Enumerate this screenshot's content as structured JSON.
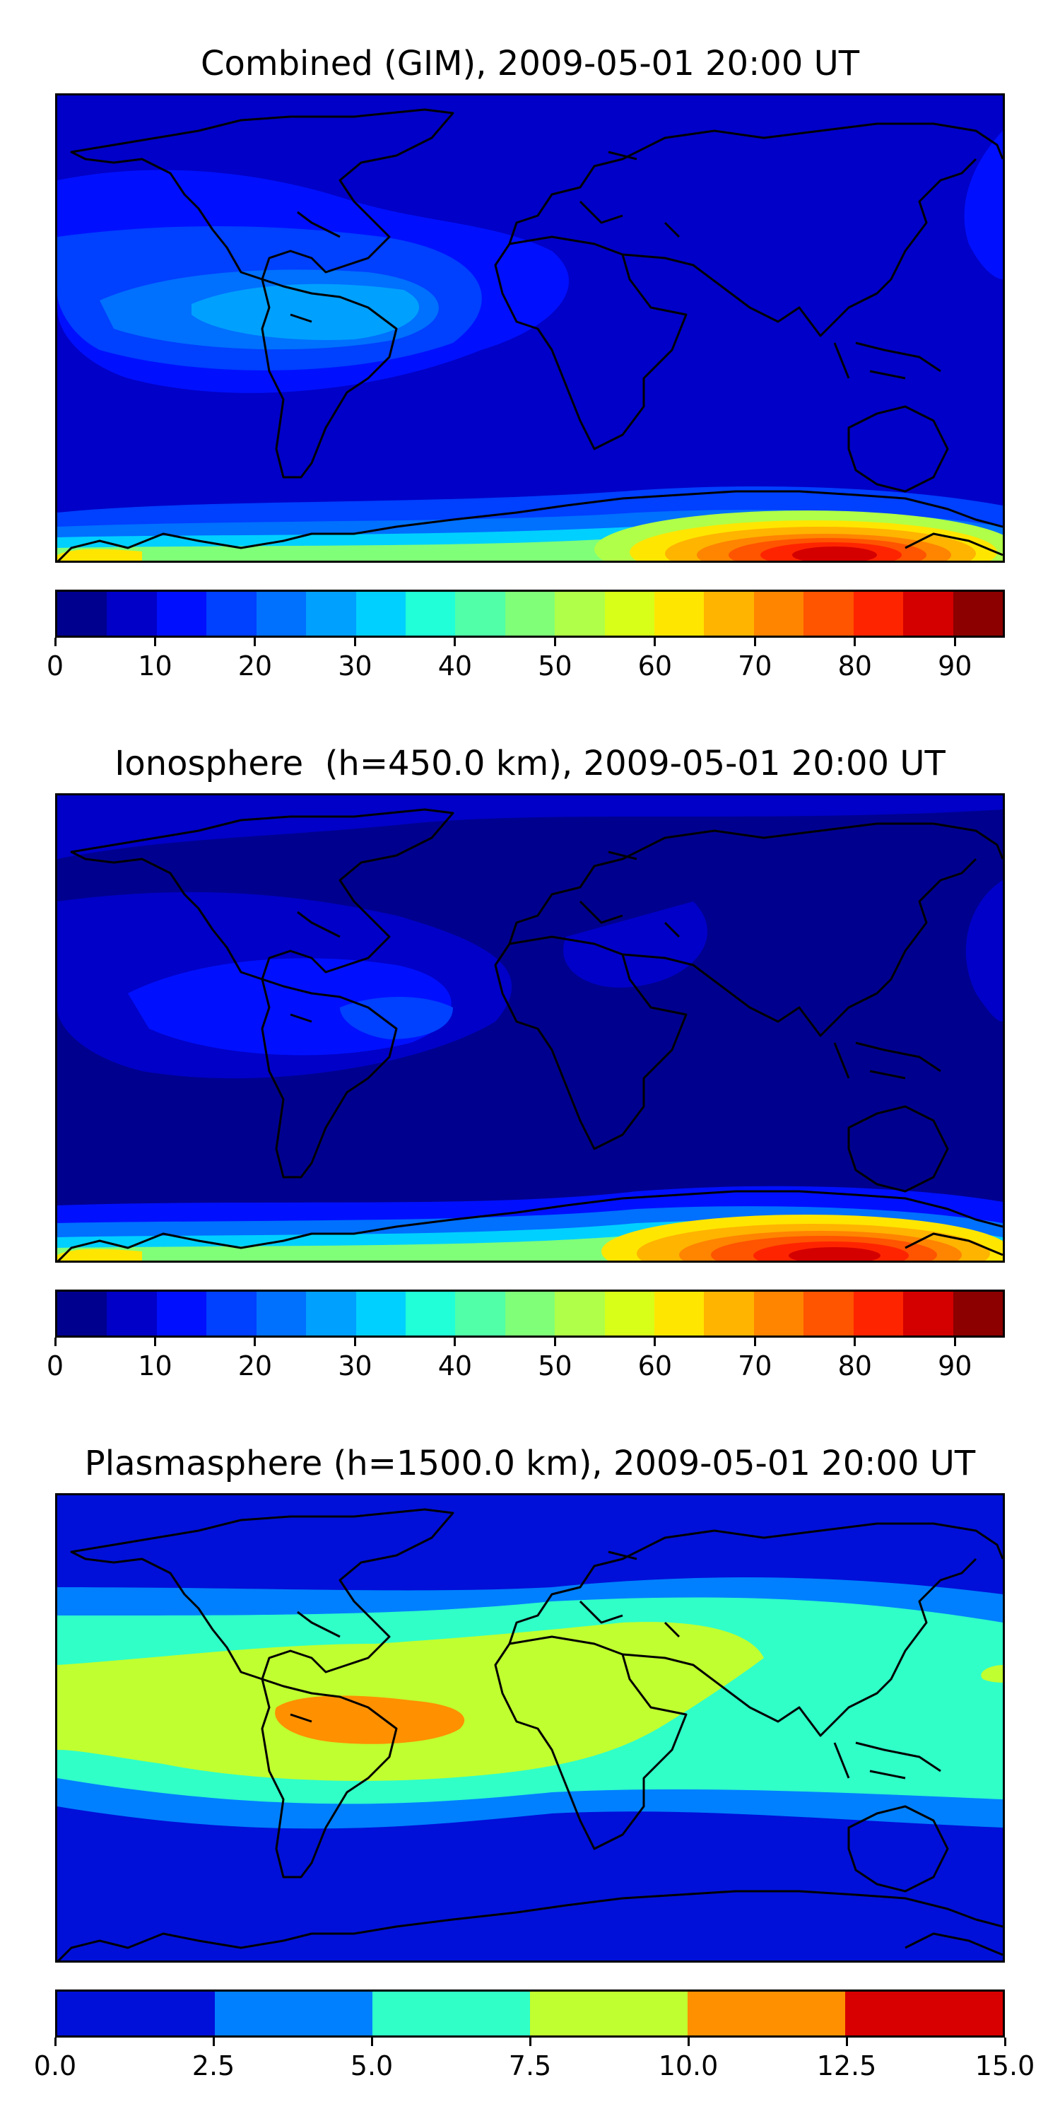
{
  "panels": [
    {
      "id": "combined",
      "title": "Combined (GIM), 2009-05-01 20:00 UT",
      "colorbar": {
        "min": 0,
        "max": 95,
        "step": 5,
        "tick_values": [
          0,
          10,
          20,
          30,
          40,
          50,
          60,
          70,
          80,
          90
        ],
        "tick_labels": [
          "0",
          "10",
          "20",
          "30",
          "40",
          "50",
          "60",
          "70",
          "80",
          "90"
        ],
        "colors": [
          "#00008f",
          "#0000c8",
          "#0010ff",
          "#0040ff",
          "#0070ff",
          "#00a0ff",
          "#00d0ff",
          "#20ffd8",
          "#50ffa8",
          "#80ff78",
          "#b0ff48",
          "#d8ff18",
          "#ffe600",
          "#ffb400",
          "#ff8400",
          "#ff5400",
          "#ff2400",
          "#d40000",
          "#8c0000"
        ]
      }
    },
    {
      "id": "ionosphere",
      "title": "Ionosphere  (h=450.0 km), 2009-05-01 20:00 UT",
      "colorbar": {
        "min": 0,
        "max": 95,
        "step": 5,
        "tick_values": [
          0,
          10,
          20,
          30,
          40,
          50,
          60,
          70,
          80,
          90
        ],
        "tick_labels": [
          "0",
          "10",
          "20",
          "30",
          "40",
          "50",
          "60",
          "70",
          "80",
          "90"
        ],
        "colors": [
          "#00008f",
          "#0000c8",
          "#0010ff",
          "#0040ff",
          "#0070ff",
          "#00a0ff",
          "#00d0ff",
          "#20ffd8",
          "#50ffa8",
          "#80ff78",
          "#b0ff48",
          "#d8ff18",
          "#ffe600",
          "#ffb400",
          "#ff8400",
          "#ff5400",
          "#ff2400",
          "#d40000",
          "#8c0000"
        ]
      }
    },
    {
      "id": "plasmasphere",
      "title": "Plasmasphere (h=1500.0 km), 2009-05-01 20:00 UT",
      "colorbar": {
        "min": 0.0,
        "max": 15.0,
        "step": 2.5,
        "tick_values": [
          0,
          2.5,
          5,
          7.5,
          10,
          12.5,
          15
        ],
        "tick_labels": [
          "0.0",
          "2.5",
          "5.0",
          "7.5",
          "10.0",
          "12.5",
          "15.0"
        ],
        "colors": [
          "#0010d8",
          "#0080ff",
          "#30ffc8",
          "#c0ff30",
          "#ff9000",
          "#d80000"
        ]
      }
    }
  ]
}
